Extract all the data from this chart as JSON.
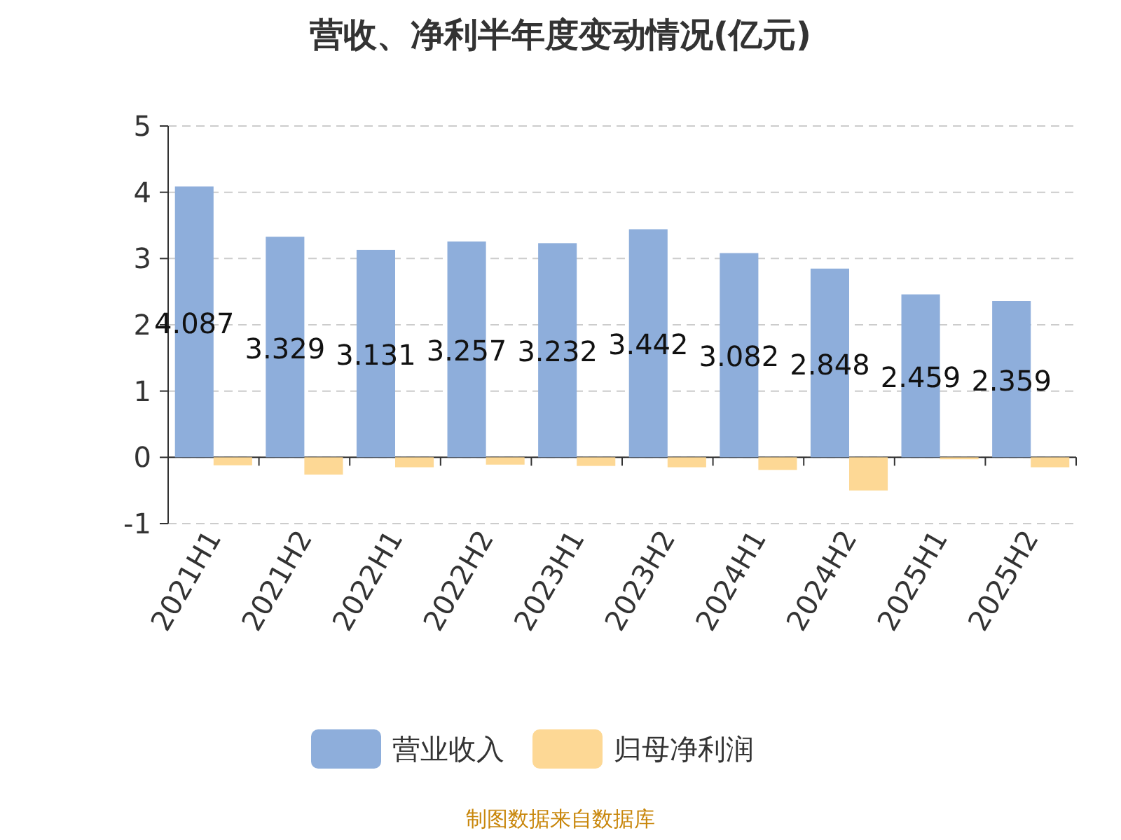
{
  "chart_data": {
    "type": "bar",
    "title": "营收、净利半年度变动情况(亿元)",
    "categories": [
      "2021H1",
      "2021H2",
      "2022H1",
      "2022H2",
      "2023H1",
      "2023H2",
      "2024H1",
      "2024H2",
      "2025H1",
      "2025H2"
    ],
    "series": [
      {
        "name": "营业收入",
        "color": "#8eaedb",
        "values": [
          4.087,
          3.329,
          3.131,
          3.257,
          3.232,
          3.442,
          3.082,
          2.848,
          2.459,
          2.359
        ],
        "value_labels": [
          "4.087",
          "3.329",
          "3.131",
          "3.257",
          "3.232",
          "3.442",
          "3.082",
          "2.848",
          "2.459",
          "2.359"
        ]
      },
      {
        "name": "归母净利润",
        "color": "#fdd895",
        "values": [
          -0.12,
          -0.26,
          -0.15,
          -0.11,
          -0.13,
          -0.15,
          -0.19,
          -0.5,
          -0.03,
          -0.15
        ]
      }
    ],
    "ylim": [
      -1,
      5
    ],
    "yticks": [
      -1,
      0,
      1,
      2,
      3,
      4,
      5
    ],
    "grid": "y",
    "legend": "bottom",
    "annotations": [
      "制图数据来自数据库"
    ]
  }
}
